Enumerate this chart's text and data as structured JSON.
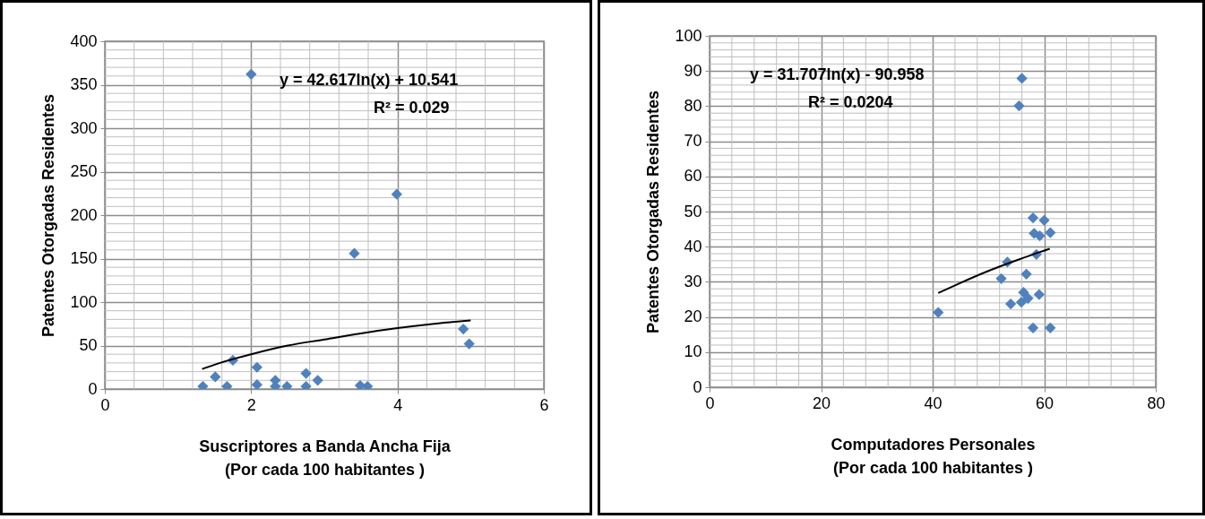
{
  "chart_data": [
    {
      "type": "scatter",
      "xlabel": "Suscriptores a Banda Ancha Fija\n(Por cada 100 habitantes )",
      "ylabel": "Patentes Otorgadas Residentes",
      "xlim": [
        0,
        6
      ],
      "xticks": [
        0,
        {
          "value": 0.4,
          "label": null
        },
        {
          "value": 0.8,
          "label": null
        },
        {
          "value": 1.2,
          "label": null
        },
        {
          "value": 1.6,
          "label": null
        },
        2,
        {
          "value": 2.4,
          "label": null
        },
        {
          "value": 2.8,
          "label": null
        },
        {
          "value": 3.2,
          "label": null
        },
        {
          "value": 3.6,
          "label": null
        },
        4,
        {
          "value": 4.4,
          "label": null
        },
        {
          "value": 4.8,
          "label": null
        },
        {
          "value": 5.2,
          "label": null
        },
        {
          "value": 5.6,
          "label": null
        },
        6
      ],
      "ylim": [
        0,
        400
      ],
      "yticks": [
        0,
        {
          "value": 10,
          "label": null
        },
        {
          "value": 20,
          "label": null
        },
        {
          "value": 30,
          "label": null
        },
        {
          "value": 40,
          "label": null
        },
        50,
        {
          "value": 60,
          "label": null
        },
        {
          "value": 70,
          "label": null
        },
        {
          "value": 80,
          "label": null
        },
        {
          "value": 90,
          "label": null
        },
        100,
        {
          "value": 110,
          "label": null
        },
        {
          "value": 120,
          "label": null
        },
        {
          "value": 130,
          "label": null
        },
        {
          "value": 140,
          "label": null
        },
        150,
        {
          "value": 160,
          "label": null
        },
        {
          "value": 170,
          "label": null
        },
        {
          "value": 180,
          "label": null
        },
        {
          "value": 190,
          "label": null
        },
        200,
        {
          "value": 210,
          "label": null
        },
        {
          "value": 220,
          "label": null
        },
        {
          "value": 230,
          "label": null
        },
        {
          "value": 240,
          "label": null
        },
        250,
        {
          "value": 260,
          "label": null
        },
        {
          "value": 270,
          "label": null
        },
        {
          "value": 280,
          "label": null
        },
        {
          "value": 290,
          "label": null
        },
        300,
        {
          "value": 310,
          "label": null
        },
        {
          "value": 320,
          "label": null
        },
        {
          "value": 330,
          "label": null
        },
        {
          "value": 340,
          "label": null
        },
        350,
        {
          "value": 360,
          "label": null
        },
        {
          "value": 370,
          "label": null
        },
        {
          "value": 380,
          "label": null
        },
        {
          "value": 390,
          "label": null
        },
        400
      ],
      "grid": true,
      "annotations": [
        "y = 42.617ln(x) + 10.541",
        "R² = 0.029"
      ],
      "series": [
        {
          "type": "scatter",
          "marker": "diamond",
          "color": "#4f81bd",
          "x": [
            1.34,
            1.51,
            1.67,
            1.75,
            2.08,
            2.08,
            2.33,
            2.33,
            2.49,
            2.75,
            2.75,
            2.91,
            3.41,
            3.49,
            3.59,
            3.99,
            4.9,
            4.98,
            2.0
          ],
          "values": [
            3,
            14,
            3,
            33,
            25,
            5,
            10,
            3,
            3,
            18,
            3,
            10,
            156,
            4,
            3,
            224,
            69,
            52,
            362
          ]
        },
        {
          "type": "line",
          "color": "#000000",
          "x": [
            1.33,
            1.5,
            2,
            2.5,
            3,
            3.5,
            4,
            4.5,
            5
          ],
          "values": [
            23,
            28,
            40,
            50,
            57,
            64,
            70,
            75,
            79
          ]
        }
      ]
    },
    {
      "type": "scatter",
      "xlabel": "Computadores Personales\n(Por cada 100 habitantes )",
      "ylabel": "Patentes Otorgadas Residentes",
      "xlim": [
        0,
        80
      ],
      "xticks": [
        0,
        {
          "value": 4,
          "label": null
        },
        {
          "value": 8,
          "label": null
        },
        {
          "value": 12,
          "label": null
        },
        {
          "value": 16,
          "label": null
        },
        20,
        {
          "value": 24,
          "label": null
        },
        {
          "value": 28,
          "label": null
        },
        {
          "value": 32,
          "label": null
        },
        {
          "value": 36,
          "label": null
        },
        40,
        {
          "value": 44,
          "label": null
        },
        {
          "value": 48,
          "label": null
        },
        {
          "value": 52,
          "label": null
        },
        {
          "value": 56,
          "label": null
        },
        60,
        {
          "value": 64,
          "label": null
        },
        {
          "value": 68,
          "label": null
        },
        {
          "value": 72,
          "label": null
        },
        {
          "value": 76,
          "label": null
        },
        80
      ],
      "ylim": [
        0,
        100
      ],
      "yticks": [
        0,
        {
          "value": 2,
          "label": null
        },
        {
          "value": 4,
          "label": null
        },
        {
          "value": 6,
          "label": null
        },
        {
          "value": 8,
          "label": null
        },
        10,
        {
          "value": 12,
          "label": null
        },
        {
          "value": 14,
          "label": null
        },
        {
          "value": 16,
          "label": null
        },
        {
          "value": 18,
          "label": null
        },
        20,
        {
          "value": 22,
          "label": null
        },
        {
          "value": 24,
          "label": null
        },
        {
          "value": 26,
          "label": null
        },
        {
          "value": 28,
          "label": null
        },
        30,
        {
          "value": 32,
          "label": null
        },
        {
          "value": 34,
          "label": null
        },
        {
          "value": 36,
          "label": null
        },
        {
          "value": 38,
          "label": null
        },
        40,
        {
          "value": 42,
          "label": null
        },
        {
          "value": 44,
          "label": null
        },
        {
          "value": 46,
          "label": null
        },
        {
          "value": 48,
          "label": null
        },
        50,
        {
          "value": 52,
          "label": null
        },
        {
          "value": 54,
          "label": null
        },
        {
          "value": 56,
          "label": null
        },
        {
          "value": 58,
          "label": null
        },
        60,
        {
          "value": 62,
          "label": null
        },
        {
          "value": 64,
          "label": null
        },
        {
          "value": 66,
          "label": null
        },
        {
          "value": 68,
          "label": null
        },
        70,
        {
          "value": 72,
          "label": null
        },
        {
          "value": 74,
          "label": null
        },
        {
          "value": 76,
          "label": null
        },
        {
          "value": 78,
          "label": null
        },
        80,
        {
          "value": 82,
          "label": null
        },
        {
          "value": 84,
          "label": null
        },
        {
          "value": 86,
          "label": null
        },
        {
          "value": 88,
          "label": null
        },
        90,
        {
          "value": 92,
          "label": null
        },
        {
          "value": 94,
          "label": null
        },
        {
          "value": 96,
          "label": null
        },
        {
          "value": 98,
          "label": null
        },
        100
      ],
      "grid": true,
      "annotations": [
        "y = 31.707ln(x) - 90.958",
        "R² = 0.0204"
      ],
      "series": [
        {
          "type": "scatter",
          "marker": "diamond",
          "color": "#4f81bd",
          "x": [
            56.0,
            55.5,
            58.0,
            60.0,
            58.2,
            59.2,
            61.1,
            58.6,
            53.4,
            56.8,
            52.3,
            56.3,
            59.1,
            54.0,
            55.9,
            57.1,
            41.0,
            58.0,
            61.1
          ],
          "values": [
            87.9,
            80.1,
            48.2,
            47.5,
            43.8,
            43.1,
            44.0,
            37.8,
            35.6,
            32.2,
            30.9,
            27.0,
            26.4,
            23.7,
            24.2,
            25.3,
            21.3,
            16.9,
            16.9
          ]
        },
        {
          "type": "line",
          "color": "#000000",
          "x": [
            41,
            45,
            50,
            55,
            58,
            61
          ],
          "values": [
            26.8,
            29.7,
            33.1,
            36.1,
            37.8,
            39.4
          ]
        }
      ]
    }
  ]
}
